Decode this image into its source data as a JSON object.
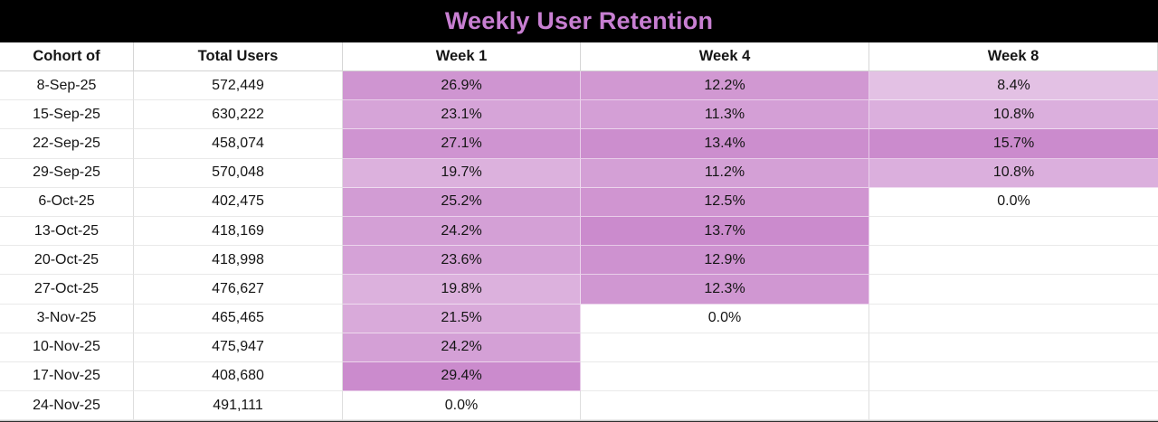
{
  "window": {
    "title_bar": {
      "title": "Weekly User Retention"
    }
  },
  "colors": {
    "title_text": "#C87FD2",
    "title_bg": "#000000",
    "heat_max": "#CB8BCD",
    "heat_min": "#FFFFFF",
    "grid_line": "#E9E9E9",
    "cell_text": "#151515"
  },
  "chart_data": {
    "type": "table",
    "title": "Weekly User Retention",
    "columns": [
      "Cohort of",
      "Total Users",
      "Week 1",
      "Week 4",
      "Week 8"
    ],
    "heat_columns": [
      2,
      3,
      4
    ],
    "heat_scale": {
      "min_color": "#FFFFFF",
      "max_color": "#CB8BCD",
      "min_value_per_column": 0
    },
    "rows": [
      [
        "8-Sep-25",
        "572,449",
        "26.9%",
        "12.2%",
        "8.4%"
      ],
      [
        "15-Sep-25",
        "630,222",
        "23.1%",
        "11.3%",
        "10.8%"
      ],
      [
        "22-Sep-25",
        "458,074",
        "27.1%",
        "13.4%",
        "15.7%"
      ],
      [
        "29-Sep-25",
        "570,048",
        "19.7%",
        "11.2%",
        "10.8%"
      ],
      [
        "6-Oct-25",
        "402,475",
        "25.2%",
        "12.5%",
        "0.0%"
      ],
      [
        "13-Oct-25",
        "418,169",
        "24.2%",
        "13.7%",
        ""
      ],
      [
        "20-Oct-25",
        "418,998",
        "23.6%",
        "12.9%",
        ""
      ],
      [
        "27-Oct-25",
        "476,627",
        "19.8%",
        "12.3%",
        ""
      ],
      [
        "3-Nov-25",
        "465,465",
        "21.5%",
        "0.0%",
        ""
      ],
      [
        "10-Nov-25",
        "475,947",
        "24.2%",
        "",
        ""
      ],
      [
        "17-Nov-25",
        "408,680",
        "29.4%",
        "",
        ""
      ],
      [
        "24-Nov-25",
        "491,111",
        "0.0%",
        "",
        ""
      ]
    ]
  }
}
